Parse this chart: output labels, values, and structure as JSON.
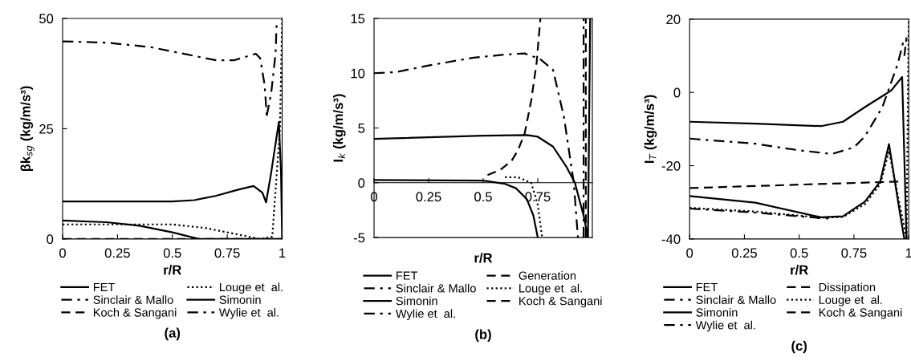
{
  "chart_data": [
    {
      "type": "line",
      "xlabel": "r/R",
      "ylabel": "βk$_{sg}$ (kg/m/s³)",
      "xlim": [
        0,
        1
      ],
      "ylim": [
        0,
        50
      ],
      "xticks": [
        0,
        0.25,
        0.5,
        0.75,
        1
      ],
      "yticks": [
        0,
        25,
        50
      ],
      "grid": false,
      "legend": "bottom",
      "annotations": [
        "(a)"
      ],
      "series": [
        {
          "name": "FET",
          "color": "#000000",
          "line_style": "solid",
          "x": [
            0,
            0.5,
            0.6,
            0.7,
            0.8,
            0.87,
            0.91,
            0.927,
            0.95,
            0.985,
            0.995,
            1
          ],
          "values": [
            8.5,
            8.5,
            8.8,
            9.8,
            11.2,
            12,
            10.5,
            8.3,
            15,
            26.5,
            15,
            0
          ]
        },
        {
          "name": "Sinclair & Mallo",
          "color": "#000000",
          "line_style": "dashdot",
          "x": [
            0,
            0.2,
            0.4,
            0.55,
            0.7,
            0.78,
            0.88,
            0.9,
            0.92,
            0.93
          ],
          "values": [
            44.8,
            44.5,
            43.5,
            42,
            40.5,
            40.5,
            42,
            41,
            35,
            28
          ]
        },
        {
          "name": "Koch & Sangani",
          "color": "#000000",
          "line_style": "dashed",
          "x": [
            0,
            1
          ],
          "values": [
            0,
            0
          ]
        },
        {
          "name": "Louge et  al.",
          "color": "#000000",
          "line_style": "dotted",
          "x": [
            0,
            0.5,
            0.65,
            0.8,
            0.9,
            0.955,
            0.99,
            1
          ],
          "values": [
            3.3,
            3.3,
            2.5,
            1,
            0,
            0.5,
            25,
            50
          ]
        },
        {
          "name": "Simonin",
          "color": "#000000",
          "line_style": "solid",
          "x": [
            0,
            0.2,
            0.35,
            0.5,
            0.62,
            0.9,
            1
          ],
          "values": [
            4.2,
            3.8,
            3,
            1.5,
            0,
            0,
            0
          ]
        },
        {
          "name": "Wylie et  al.",
          "color": "#000000",
          "line_style": "dashdot",
          "x": [
            0.93,
            0.95,
            0.97,
            0.975
          ],
          "values": [
            28,
            33,
            42,
            49
          ]
        }
      ]
    },
    {
      "type": "line",
      "xlabel": "r/R",
      "ylabel": "I$_{k}$ (kg/m/s³)",
      "xlim": [
        0,
        1
      ],
      "ylim": [
        -5,
        15
      ],
      "xticks": [
        0,
        0.25,
        0.5,
        0.75
      ],
      "yticks": [
        -5,
        0,
        5,
        10,
        15
      ],
      "grid": false,
      "legend": "bottom",
      "annotations": [
        "(b)"
      ],
      "series": [
        {
          "name": "FET",
          "color": "#000000",
          "line_style": "solid",
          "x": [
            0,
            0.5,
            0.7,
            0.75,
            0.82,
            0.88,
            0.92,
            0.96,
            0.98,
            0.99
          ],
          "values": [
            4,
            4.3,
            4.35,
            4.2,
            3.3,
            1.5,
            0,
            -3,
            -5,
            15
          ]
        },
        {
          "name": "Sinclair & Mallo",
          "color": "#000000",
          "line_style": "dashdot",
          "x": [
            0,
            0.1,
            0.25,
            0.45,
            0.6,
            0.69,
            0.76,
            0.82,
            0.87,
            0.9,
            0.915,
            0.934
          ],
          "values": [
            10,
            10.1,
            10.7,
            11.4,
            11.7,
            11.8,
            11.3,
            10.3,
            6,
            2,
            0,
            -5
          ]
        },
        {
          "name": "Simonin",
          "color": "#000000",
          "line_style": "solid",
          "x": [
            0,
            0.5,
            0.6,
            0.65,
            0.7,
            0.73,
            0.75
          ],
          "values": [
            0.25,
            0.2,
            -0.1,
            -0.5,
            -1.5,
            -3,
            -5
          ]
        },
        {
          "name": "Wylie et  al.",
          "color": "#000000",
          "line_style": "dashdot",
          "x": [
            0.96,
            0.96
          ],
          "values": [
            -5,
            15
          ]
        },
        {
          "name": "Generation",
          "color": "#000000",
          "line_style": "dashed",
          "x": [
            0.52,
            0.58,
            0.63,
            0.66,
            0.69,
            0.72,
            0.745,
            0.762
          ],
          "values": [
            0.7,
            1.2,
            2,
            3,
            4.5,
            7.5,
            11,
            15
          ]
        },
        {
          "name": "Louge et  al.",
          "color": "#000000",
          "line_style": "dotted",
          "x": [
            0.6,
            0.66,
            0.72,
            0.75,
            0.77
          ],
          "values": [
            0.5,
            0.5,
            0,
            -2,
            -5
          ]
        },
        {
          "name": "Koch & Sangani",
          "color": "#000000",
          "line_style": "dashed",
          "x": [
            0.97,
            0.97
          ],
          "values": [
            -5,
            15
          ]
        }
      ]
    },
    {
      "type": "line",
      "xlabel": "r/R",
      "ylabel": "I$_{T}$ (kg/m/s³)",
      "xlim": [
        0,
        1
      ],
      "ylim": [
        -40,
        20
      ],
      "xticks": [
        0,
        0.25,
        0.5,
        0.75,
        1
      ],
      "yticks": [
        -40,
        -20,
        0,
        20
      ],
      "grid": false,
      "legend": "bottom",
      "annotations": [
        "(c)"
      ],
      "series": [
        {
          "name": "FET",
          "color": "#000000",
          "line_style": "solid",
          "x": [
            0,
            0.3,
            0.6,
            0.7,
            0.8,
            0.88,
            0.92,
            0.97,
            0.99
          ],
          "values": [
            -8,
            -8.5,
            -9.2,
            -8,
            -4,
            -1,
            0.5,
            4.2,
            -40
          ]
        },
        {
          "name": "Sinclair & Mallo",
          "color": "#000000",
          "line_style": "dashdot",
          "x": [
            0,
            0.3,
            0.5,
            0.65,
            0.75,
            0.8,
            0.85,
            0.88,
            0.95,
            0.98
          ],
          "values": [
            -12.6,
            -14,
            -15.8,
            -16.8,
            -15,
            -12,
            -7,
            -4,
            7.8,
            15
          ]
        },
        {
          "name": "Simonin",
          "color": "#000000",
          "line_style": "solid",
          "x": [
            0,
            0.3,
            0.6,
            0.7,
            0.8,
            0.87,
            0.91,
            0.96,
            0.98
          ],
          "values": [
            -28.3,
            -30.1,
            -34.1,
            -33.8,
            -29.8,
            -24.3,
            -14.1,
            -33,
            -40
          ]
        },
        {
          "name": "Wylie et  al.",
          "color": "#000000",
          "line_style": "dashdot",
          "x": [
            0,
            0.3,
            0.6,
            0.65
          ],
          "values": [
            -31.7,
            -32.8,
            -34.3,
            -34.5
          ]
        },
        {
          "name": "Dissipation",
          "color": "#000000",
          "line_style": "dashed",
          "x": [
            0,
            0.97
          ],
          "values": [
            -26.1,
            -24.3
          ]
        },
        {
          "name": "Louge et  al.",
          "color": "#000000",
          "line_style": "dotted",
          "x": [
            0,
            0.3,
            0.6,
            0.7,
            0.8,
            0.87,
            0.91,
            0.96,
            0.99,
            1
          ],
          "values": [
            -31.5,
            -32.5,
            -34.2,
            -34,
            -30.5,
            -25,
            -16,
            -31,
            -40,
            20
          ]
        },
        {
          "name": "Koch & Sangani",
          "color": "#000000",
          "line_style": "dashed",
          "x": [
            0.98,
            0.99
          ],
          "values": [
            10,
            15
          ]
        }
      ]
    }
  ]
}
